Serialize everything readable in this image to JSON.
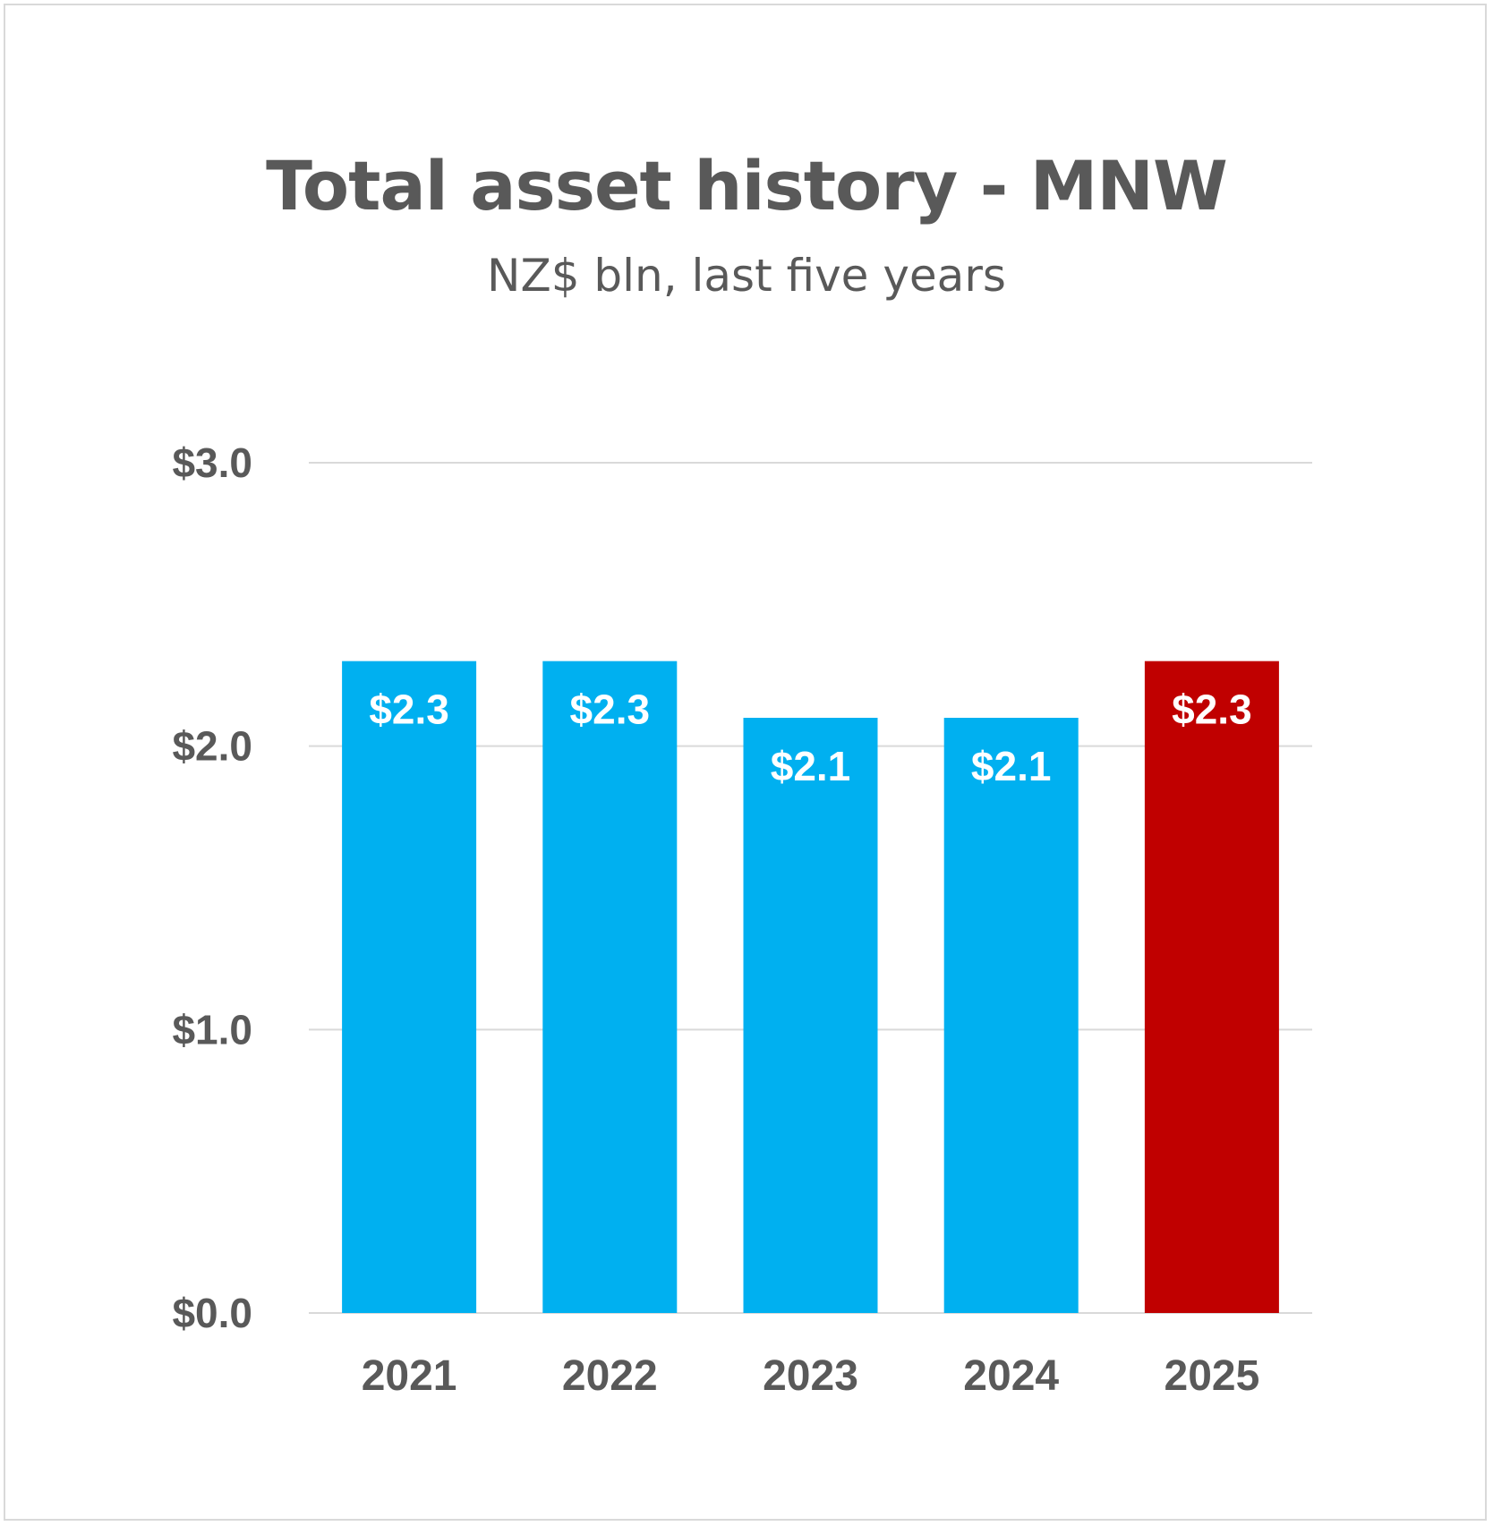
{
  "chart_data": {
    "type": "bar",
    "title": "Total asset history - MNW",
    "subtitle": "NZ$ bln, last five years",
    "xlabel": "",
    "ylabel": "",
    "categories": [
      "2021",
      "2022",
      "2023",
      "2024",
      "2025"
    ],
    "values": [
      2.3,
      2.3,
      2.1,
      2.1,
      2.3
    ],
    "data_labels": [
      "$2.3",
      "$2.3",
      "$2.1",
      "$2.1",
      "$2.3"
    ],
    "yticks": [
      0,
      1,
      2,
      3
    ],
    "ytick_labels": [
      "$0.0",
      "$1.0",
      "$2.0",
      "$3.0"
    ],
    "ylim": [
      0,
      3
    ],
    "grid": true,
    "legend": "none",
    "bar_colors": [
      "#00b0f0",
      "#00b0f0",
      "#00b0f0",
      "#00b0f0",
      "#c00000"
    ],
    "gridline_color": "#d9d9d9"
  }
}
